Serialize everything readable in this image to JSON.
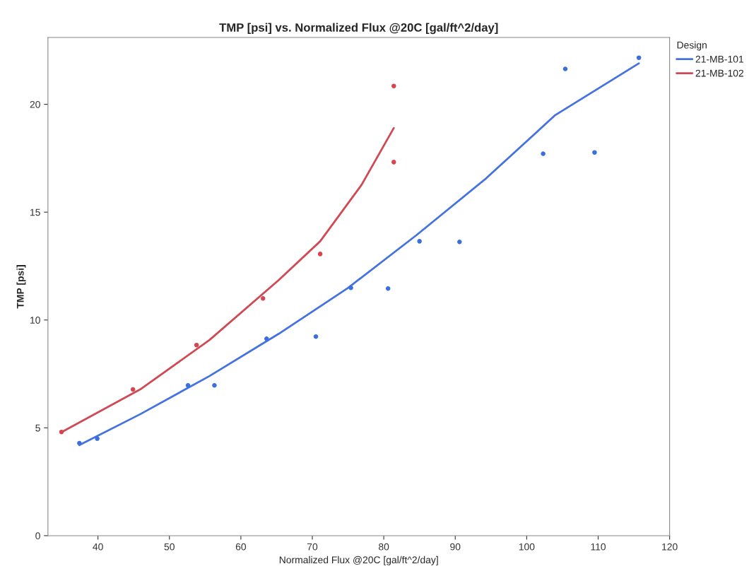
{
  "chart_data": {
    "type": "scatter",
    "title": "TMP [psi] vs. Normalized Flux @20C [gal/ft^2/day]",
    "xlabel": "Normalized Flux @20C [gal/ft^2/day]",
    "ylabel": "TMP [psi]",
    "legend_title": "Design",
    "legend": "top right",
    "grid": false,
    "xlim": [
      33,
      120
    ],
    "xticks": [
      40,
      50,
      60,
      70,
      80,
      90,
      100,
      110,
      120
    ],
    "ylim": [
      0,
      23.1
    ],
    "yticks": [
      0,
      5,
      10,
      15,
      20
    ],
    "series": [
      {
        "marker": "circle",
        "color": "#3b6fe0",
        "x": [
          37.4,
          39.9,
          52.6,
          56.3,
          63.6,
          70.5,
          75.4,
          80.6,
          85.0,
          90.6,
          102.3,
          105.4,
          109.5,
          115.7
        ],
        "values": [
          4.29,
          4.5,
          6.97,
          6.97,
          9.13,
          9.23,
          11.49,
          11.46,
          13.65,
          13.62,
          17.71,
          21.64,
          17.77,
          22.16
        ]
      },
      {
        "marker": "circle",
        "color": "#d64550",
        "x": [
          34.9,
          44.9,
          53.8,
          63.1,
          71.1,
          81.4,
          81.4
        ],
        "values": [
          4.81,
          6.78,
          8.84,
          11.0,
          13.06,
          20.85,
          17.32
        ]
      },
      {
        "type": "line",
        "name": "21-MB-101",
        "color": "#4472e0",
        "x": [
          37.4,
          45.9,
          55.6,
          65.3,
          75.0,
          84.6,
          94.3,
          104.0,
          115.7
        ],
        "values": [
          4.2,
          5.63,
          7.4,
          9.36,
          11.49,
          13.94,
          16.56,
          19.5,
          21.9
        ]
      },
      {
        "type": "line",
        "name": "21-MB-102",
        "color": "#d04a55",
        "x": [
          34.9,
          45.9,
          55.6,
          65.3,
          71.1,
          76.9,
          81.4
        ],
        "values": [
          4.8,
          6.78,
          9.07,
          11.85,
          13.65,
          16.27,
          18.9
        ]
      }
    ]
  }
}
